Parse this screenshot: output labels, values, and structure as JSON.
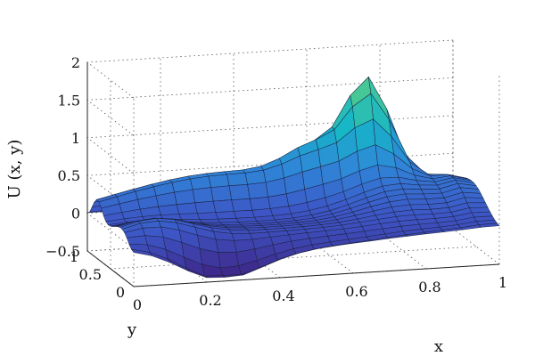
{
  "chart_data": {
    "type": "surface",
    "title": "",
    "xlabel": "x",
    "ylabel": "y",
    "zlabel": "U (x, y)",
    "xlim": [
      0,
      1
    ],
    "ylim": [
      0,
      1
    ],
    "zlim": [
      -0.5,
      2
    ],
    "x_ticks": [
      "0",
      "0.2",
      "0.4",
      "0.6",
      "0.8",
      "1"
    ],
    "x_tick_values": [
      0,
      0.2,
      0.4,
      0.6,
      0.8,
      1
    ],
    "y_ticks": [
      "0",
      "0.5",
      "1"
    ],
    "y_tick_values": [
      0,
      0.5,
      1
    ],
    "z_ticks": [
      "2",
      "1.5",
      "1",
      "0.5",
      "0",
      "−0.5"
    ],
    "z_tick_values": [
      2,
      1.5,
      1,
      0.5,
      0,
      -0.5
    ],
    "grid": true,
    "grid_size": 21,
    "colormap": [
      "#3e2a8c",
      "#3d55c5",
      "#2f86d8",
      "#16b6c8",
      "#4cc98f",
      "#b8d43a"
    ]
  }
}
